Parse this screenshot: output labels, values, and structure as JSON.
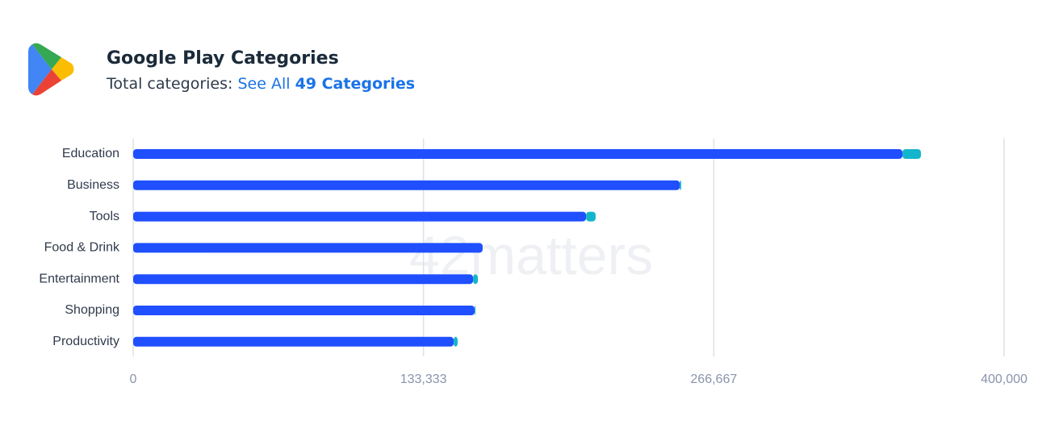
{
  "header": {
    "title": "Google Play Categories",
    "subtitle_label": "Total categories:",
    "link_text": "See All",
    "link_count": "49 Categories"
  },
  "watermark": "42matters",
  "chart_data": {
    "type": "bar",
    "orientation": "horizontal",
    "stacked": true,
    "categories": [
      "Education",
      "Business",
      "Tools",
      "Food & Drink",
      "Entertainment",
      "Shopping",
      "Productivity"
    ],
    "series": [
      {
        "color": "#1f4fff",
        "values": [
          353300,
          251000,
          208000,
          160500,
          156100,
          156800,
          147200
        ]
      },
      {
        "color": "#12b5cb",
        "values": [
          8500,
          700,
          4400,
          0,
          2200,
          400,
          1800
        ]
      }
    ],
    "xlim": [
      0,
      400000
    ],
    "xticks": [
      0,
      {
        "value": 133333.33,
        "label": "133,333"
      },
      {
        "value": 266666.67,
        "label": "266,667"
      },
      {
        "value": 400000,
        "label": "400,000"
      }
    ],
    "grid": true
  }
}
